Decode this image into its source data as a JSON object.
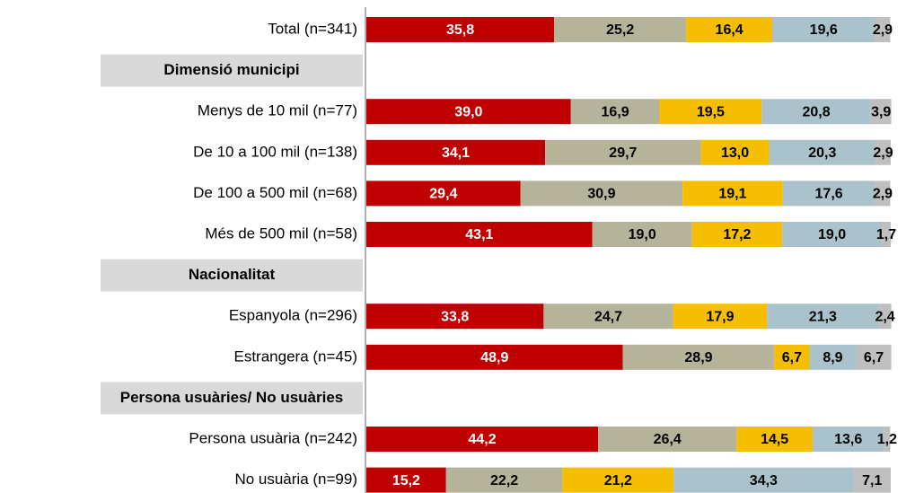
{
  "chart_data": {
    "type": "stacked-bar-horizontal",
    "categories": [
      "Total (n=341)",
      "Dimensió municipi",
      "Menys de 10 mil (n=77)",
      "De 10 a 100 mil (n=138)",
      "De 100 a 500 mil (n=68)",
      "Més de 500 mil (n=58)",
      "Nacionalitat",
      "Espanyola (n=296)",
      "Estrangera (n=45)",
      "Persona usuàries/ No usuàries",
      "Persona usuària (n=242)",
      "No usuària (n=99)"
    ],
    "xlim": [
      0,
      100
    ],
    "series": [
      {
        "color": "#c00000",
        "values": [
          35.8,
          null,
          39.0,
          34.1,
          29.4,
          43.1,
          null,
          33.8,
          48.9,
          null,
          44.2,
          15.2
        ],
        "value_labels": [
          "35,8",
          null,
          "39,0",
          "34,1",
          "29,4",
          "43,1",
          null,
          "33,8",
          "48,9",
          null,
          "44,2",
          "15,2"
        ]
      },
      {
        "color": "#b5b39a",
        "values": [
          25.2,
          null,
          16.9,
          29.7,
          30.9,
          19.0,
          null,
          24.7,
          28.9,
          null,
          26.4,
          22.2
        ],
        "value_labels": [
          "25,2",
          null,
          "16,9",
          "29,7",
          "30,9",
          "19,0",
          null,
          "24,7",
          "28,9",
          null,
          "26,4",
          "22,2"
        ]
      },
      {
        "color": "#f5be00",
        "values": [
          16.4,
          null,
          19.5,
          13.0,
          19.1,
          17.2,
          null,
          17.9,
          6.7,
          null,
          14.5,
          21.2
        ],
        "value_labels": [
          "16,4",
          null,
          "19,5",
          "13,0",
          "19,1",
          "17,2",
          null,
          "17,9",
          "6,7",
          null,
          "14,5",
          "21,2"
        ]
      },
      {
        "color": "#a9c2cc",
        "values": [
          19.6,
          null,
          20.8,
          20.3,
          17.6,
          19.0,
          null,
          21.3,
          8.9,
          null,
          13.6,
          34.3
        ],
        "value_labels": [
          "19,6",
          null,
          "20,8",
          "20,3",
          "17,6",
          "19,0",
          null,
          "21,3",
          "8,9",
          null,
          "13,6",
          "34,3"
        ]
      },
      {
        "color": "#bfbfbf",
        "values": [
          2.9,
          null,
          3.9,
          2.9,
          2.9,
          1.7,
          null,
          2.4,
          6.7,
          null,
          1.2,
          7.1
        ],
        "value_labels": [
          "2,9",
          null,
          "3,9",
          "2,9",
          "2,9",
          "1,7",
          null,
          "2,4",
          "6,7",
          null,
          "1,2",
          "7,1"
        ]
      }
    ]
  }
}
